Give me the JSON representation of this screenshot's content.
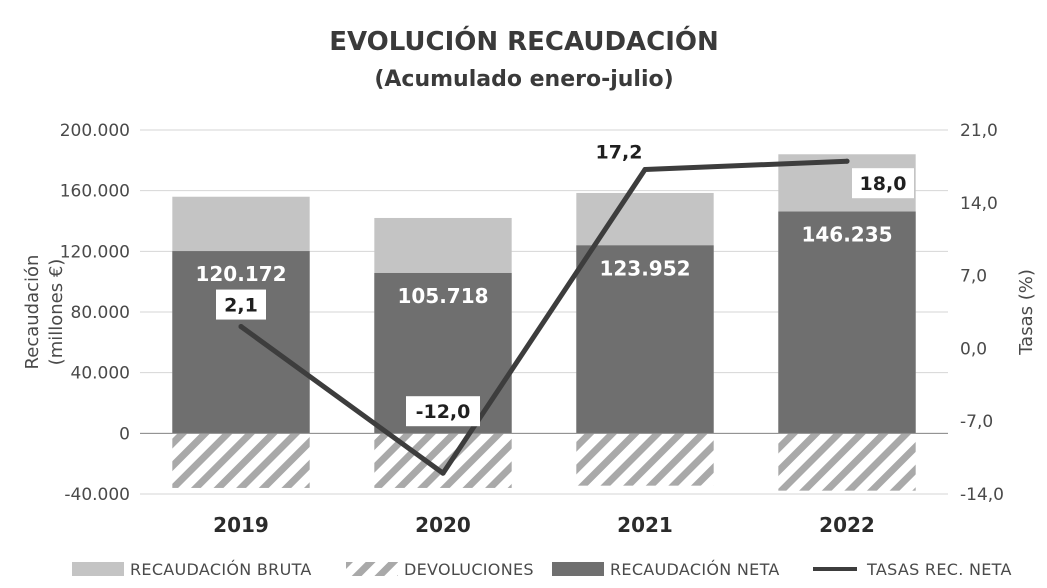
{
  "colors": {
    "bruta": "#c4c4c4",
    "neta": "#6f6f6f",
    "hatch": "#a9a9a9",
    "line": "#3d3d3d",
    "grid": "#d6d6d6"
  },
  "chart_data": {
    "type": "bar",
    "title": "EVOLUCIÓN RECAUDACIÓN",
    "subtitle": "(Acumulado enero-julio)",
    "categories": [
      "2019",
      "2020",
      "2021",
      "2022"
    ],
    "ylabel": [
      "Recaudación",
      "(millones €)"
    ],
    "y2label": "Tasas (%)",
    "ylim": [
      -40000,
      200000
    ],
    "y2lim": [
      -14,
      21
    ],
    "yticks": [
      "200.000",
      "160.000",
      "120.000",
      "80.000",
      "40.000",
      "0",
      "-40.000"
    ],
    "y2ticks": [
      "21,0",
      "14,0",
      "7,0",
      "0,0",
      "-7,0",
      "-14,0"
    ],
    "grid": true,
    "legend_position": "bottom",
    "series": [
      {
        "name": "RECAUDACIÓN BRUTA",
        "kind": "stacked-bar",
        "values": [
          156000,
          142000,
          158500,
          184000
        ]
      },
      {
        "name": "DEVOLUCIONES",
        "kind": "bar",
        "values": [
          -36000,
          -36000,
          -34500,
          -37800
        ]
      },
      {
        "name": "RECAUDACIÓN NETA",
        "kind": "bar",
        "values": [
          120172,
          105718,
          123952,
          146235
        ],
        "labels": [
          "120.172",
          "105.718",
          "123.952",
          "146.235"
        ]
      },
      {
        "name": "TASAS REC. NETA",
        "kind": "line",
        "axis": "secondary",
        "values": [
          2.1,
          -12.0,
          17.2,
          18.0
        ],
        "labels": [
          "2,1",
          "-12,0",
          "17,2",
          "18,0"
        ]
      }
    ]
  }
}
